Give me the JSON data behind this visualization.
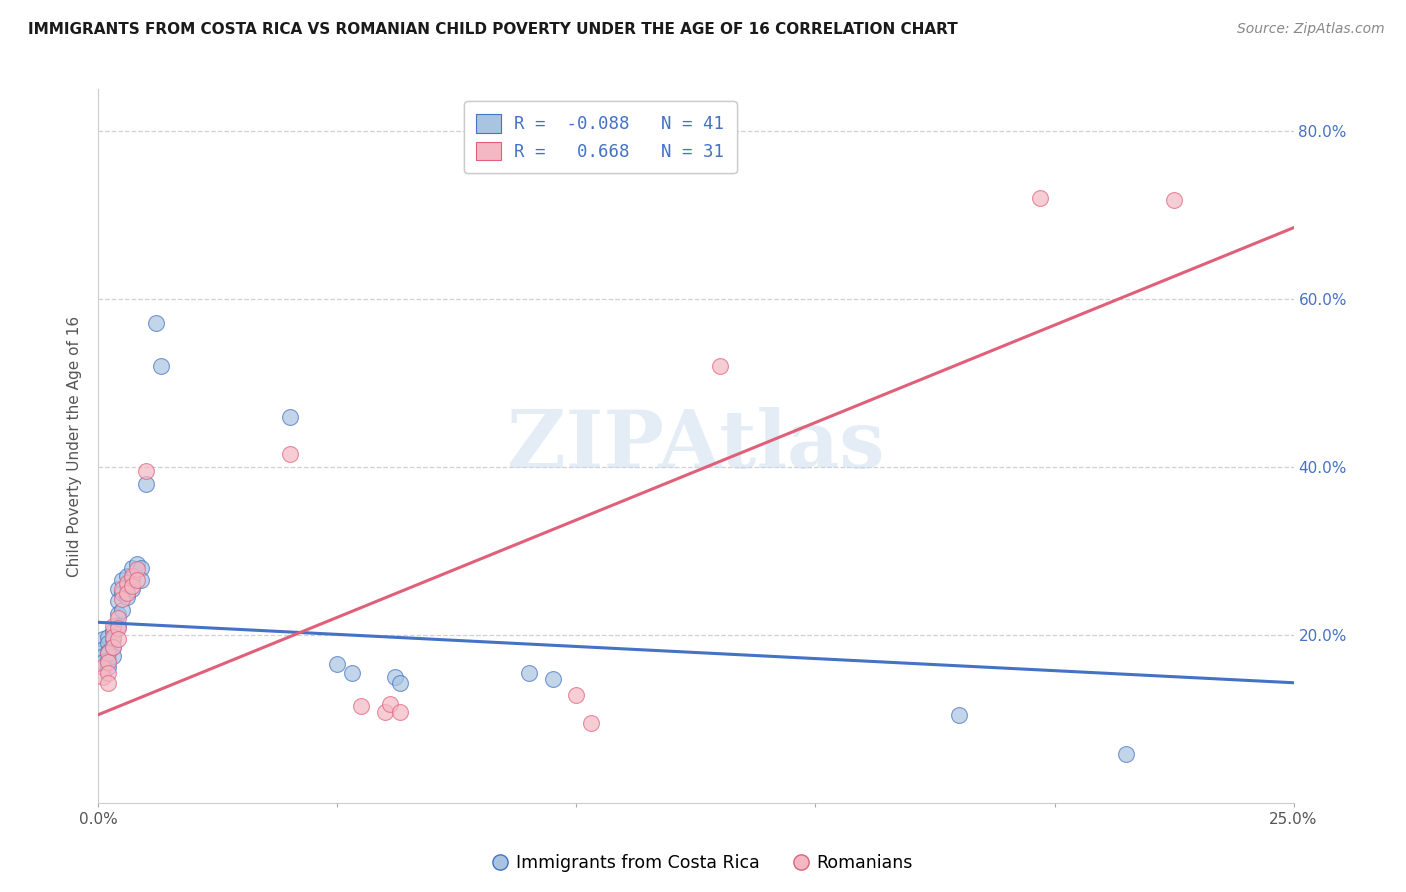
{
  "title": "IMMIGRANTS FROM COSTA RICA VS ROMANIAN CHILD POVERTY UNDER THE AGE OF 16 CORRELATION CHART",
  "source": "Source: ZipAtlas.com",
  "ylabel": "Child Poverty Under the Age of 16",
  "xlim": [
    0.0,
    0.25
  ],
  "ylim": [
    0.0,
    0.85
  ],
  "yticks": [
    0.2,
    0.4,
    0.6,
    0.8
  ],
  "ytick_labels": [
    "20.0%",
    "40.0%",
    "60.0%",
    "80.0%"
  ],
  "legend_bottom": [
    "Immigrants from Costa Rica",
    "Romanians"
  ],
  "blue_fill": "#a8c4e0",
  "blue_edge": "#4472c4",
  "pink_fill": "#f4b8c4",
  "pink_edge": "#e0607a",
  "blue_line_color": "#4472c4",
  "pink_line_color": "#e0607a",
  "watermark": "ZIPAtlas",
  "blue_scatter": [
    [
      0.001,
      0.195
    ],
    [
      0.001,
      0.183
    ],
    [
      0.001,
      0.175
    ],
    [
      0.001,
      0.168
    ],
    [
      0.002,
      0.198
    ],
    [
      0.002,
      0.19
    ],
    [
      0.002,
      0.18
    ],
    [
      0.002,
      0.17
    ],
    [
      0.002,
      0.162
    ],
    [
      0.003,
      0.205
    ],
    [
      0.003,
      0.195
    ],
    [
      0.003,
      0.185
    ],
    [
      0.003,
      0.175
    ],
    [
      0.004,
      0.255
    ],
    [
      0.004,
      0.24
    ],
    [
      0.004,
      0.225
    ],
    [
      0.004,
      0.21
    ],
    [
      0.005,
      0.265
    ],
    [
      0.005,
      0.25
    ],
    [
      0.005,
      0.23
    ],
    [
      0.006,
      0.27
    ],
    [
      0.006,
      0.258
    ],
    [
      0.006,
      0.245
    ],
    [
      0.007,
      0.28
    ],
    [
      0.007,
      0.268
    ],
    [
      0.007,
      0.255
    ],
    [
      0.008,
      0.285
    ],
    [
      0.009,
      0.28
    ],
    [
      0.009,
      0.265
    ],
    [
      0.01,
      0.38
    ],
    [
      0.012,
      0.572
    ],
    [
      0.013,
      0.52
    ],
    [
      0.04,
      0.46
    ],
    [
      0.05,
      0.165
    ],
    [
      0.053,
      0.155
    ],
    [
      0.062,
      0.15
    ],
    [
      0.063,
      0.143
    ],
    [
      0.09,
      0.155
    ],
    [
      0.095,
      0.148
    ],
    [
      0.18,
      0.105
    ],
    [
      0.215,
      0.058
    ]
  ],
  "pink_scatter": [
    [
      0.001,
      0.162
    ],
    [
      0.001,
      0.15
    ],
    [
      0.002,
      0.178
    ],
    [
      0.002,
      0.168
    ],
    [
      0.002,
      0.155
    ],
    [
      0.002,
      0.143
    ],
    [
      0.003,
      0.21
    ],
    [
      0.003,
      0.198
    ],
    [
      0.003,
      0.185
    ],
    [
      0.004,
      0.22
    ],
    [
      0.004,
      0.208
    ],
    [
      0.004,
      0.195
    ],
    [
      0.005,
      0.255
    ],
    [
      0.005,
      0.243
    ],
    [
      0.006,
      0.262
    ],
    [
      0.006,
      0.25
    ],
    [
      0.007,
      0.27
    ],
    [
      0.007,
      0.258
    ],
    [
      0.008,
      0.278
    ],
    [
      0.008,
      0.265
    ],
    [
      0.01,
      0.395
    ],
    [
      0.04,
      0.415
    ],
    [
      0.055,
      0.115
    ],
    [
      0.06,
      0.108
    ],
    [
      0.061,
      0.118
    ],
    [
      0.063,
      0.108
    ],
    [
      0.1,
      0.128
    ],
    [
      0.103,
      0.095
    ],
    [
      0.13,
      0.52
    ],
    [
      0.197,
      0.72
    ],
    [
      0.225,
      0.718
    ]
  ],
  "blue_line_x": [
    0.0,
    0.25
  ],
  "blue_line_y": [
    0.215,
    0.143
  ],
  "pink_line_x": [
    0.0,
    0.25
  ],
  "pink_line_y": [
    0.105,
    0.685
  ]
}
